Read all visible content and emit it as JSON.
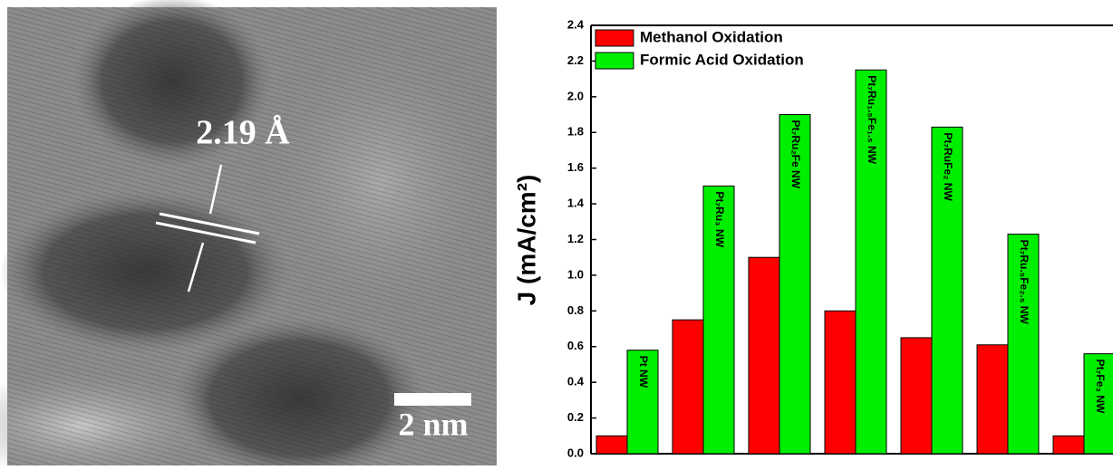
{
  "image": {
    "annotation": "2.19 Å",
    "scale_bar": "2 nm"
  },
  "chart_data": {
    "type": "bar",
    "ylabel": "J (mA/cm²)",
    "categories": [
      "Pt NW",
      "Pt₇Ru₃ NW",
      "Pt₇Ru₂Fe NW",
      "Pt₇Ru₁.₅Fe₁.₅ NW",
      "Pt₇RuFe₂ NW",
      "Pt₇Ru.₅Fe₂.₅ NW",
      "Pt₇Fe₃ NW"
    ],
    "series": [
      {
        "name": "Methanol Oxidation",
        "color": "#ff0000",
        "values": [
          0.1,
          0.75,
          1.1,
          0.8,
          0.65,
          0.61,
          0.1
        ]
      },
      {
        "name": "Formic Acid Oxidation",
        "color": "#00ee00",
        "values": [
          0.58,
          1.5,
          1.9,
          2.15,
          1.83,
          1.23,
          0.56
        ]
      }
    ],
    "ylim": [
      0,
      2.4
    ],
    "yticks": [
      {
        "value": 0,
        "label": "0.0"
      },
      0.2,
      0.4,
      0.6,
      0.8,
      {
        "value": 1,
        "label": "1.0"
      },
      1.2,
      1.4,
      1.6,
      1.8,
      {
        "value": 2,
        "label": "2.0"
      },
      2.2,
      2.4
    ],
    "legend": "upper-left"
  }
}
